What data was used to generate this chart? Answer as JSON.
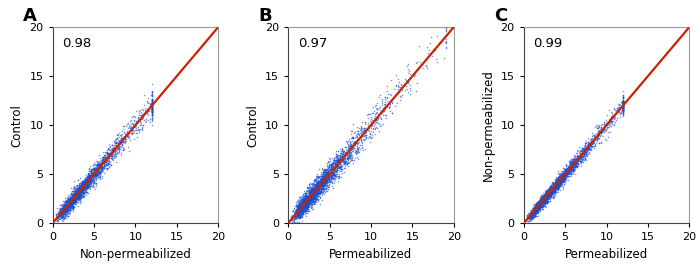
{
  "panels": [
    {
      "label": "A",
      "xlabel": "Non-permeabilized",
      "ylabel": "Control",
      "r_value": "0.98",
      "xlim": [
        0,
        20
      ],
      "ylim": [
        0,
        20
      ],
      "xticks": [
        0,
        5,
        10,
        15,
        20
      ],
      "yticks": [
        0,
        5,
        10,
        15,
        20
      ],
      "seed": 42,
      "n_points": 2500,
      "scatter_color": "#1a4dcc",
      "line_color": "#cc2200",
      "slope": 1.0,
      "intercept": 0.0,
      "spread": 0.35,
      "x_scale": 2.5,
      "max_x": 12.0
    },
    {
      "label": "B",
      "xlabel": "Permeabilized",
      "ylabel": "Control",
      "r_value": "0.97",
      "xlim": [
        0,
        20
      ],
      "ylim": [
        0,
        20
      ],
      "xticks": [
        0,
        5,
        10,
        15,
        20
      ],
      "yticks": [
        0,
        5,
        10,
        15,
        20
      ],
      "seed": 123,
      "n_points": 2800,
      "scatter_color": "#1a4dcc",
      "line_color": "#cc2200",
      "slope": 1.0,
      "intercept": 0.0,
      "spread": 0.45,
      "x_scale": 3.0,
      "max_x": 19.0
    },
    {
      "label": "C",
      "xlabel": "Permeabilized",
      "ylabel": "Non-permeabilized",
      "r_value": "0.99",
      "xlim": [
        0,
        20
      ],
      "ylim": [
        0,
        20
      ],
      "xticks": [
        0,
        5,
        10,
        15,
        20
      ],
      "yticks": [
        0,
        5,
        10,
        15,
        20
      ],
      "seed": 7,
      "n_points": 3000,
      "scatter_color": "#1a4dcc",
      "line_color": "#cc2200",
      "slope": 1.0,
      "intercept": 0.0,
      "spread": 0.25,
      "x_scale": 2.5,
      "max_x": 12.0
    }
  ],
  "fig_bg": "#ffffff",
  "panel_label_fontsize": 13,
  "axis_label_fontsize": 8.5,
  "tick_fontsize": 8,
  "r_fontsize": 9.5
}
